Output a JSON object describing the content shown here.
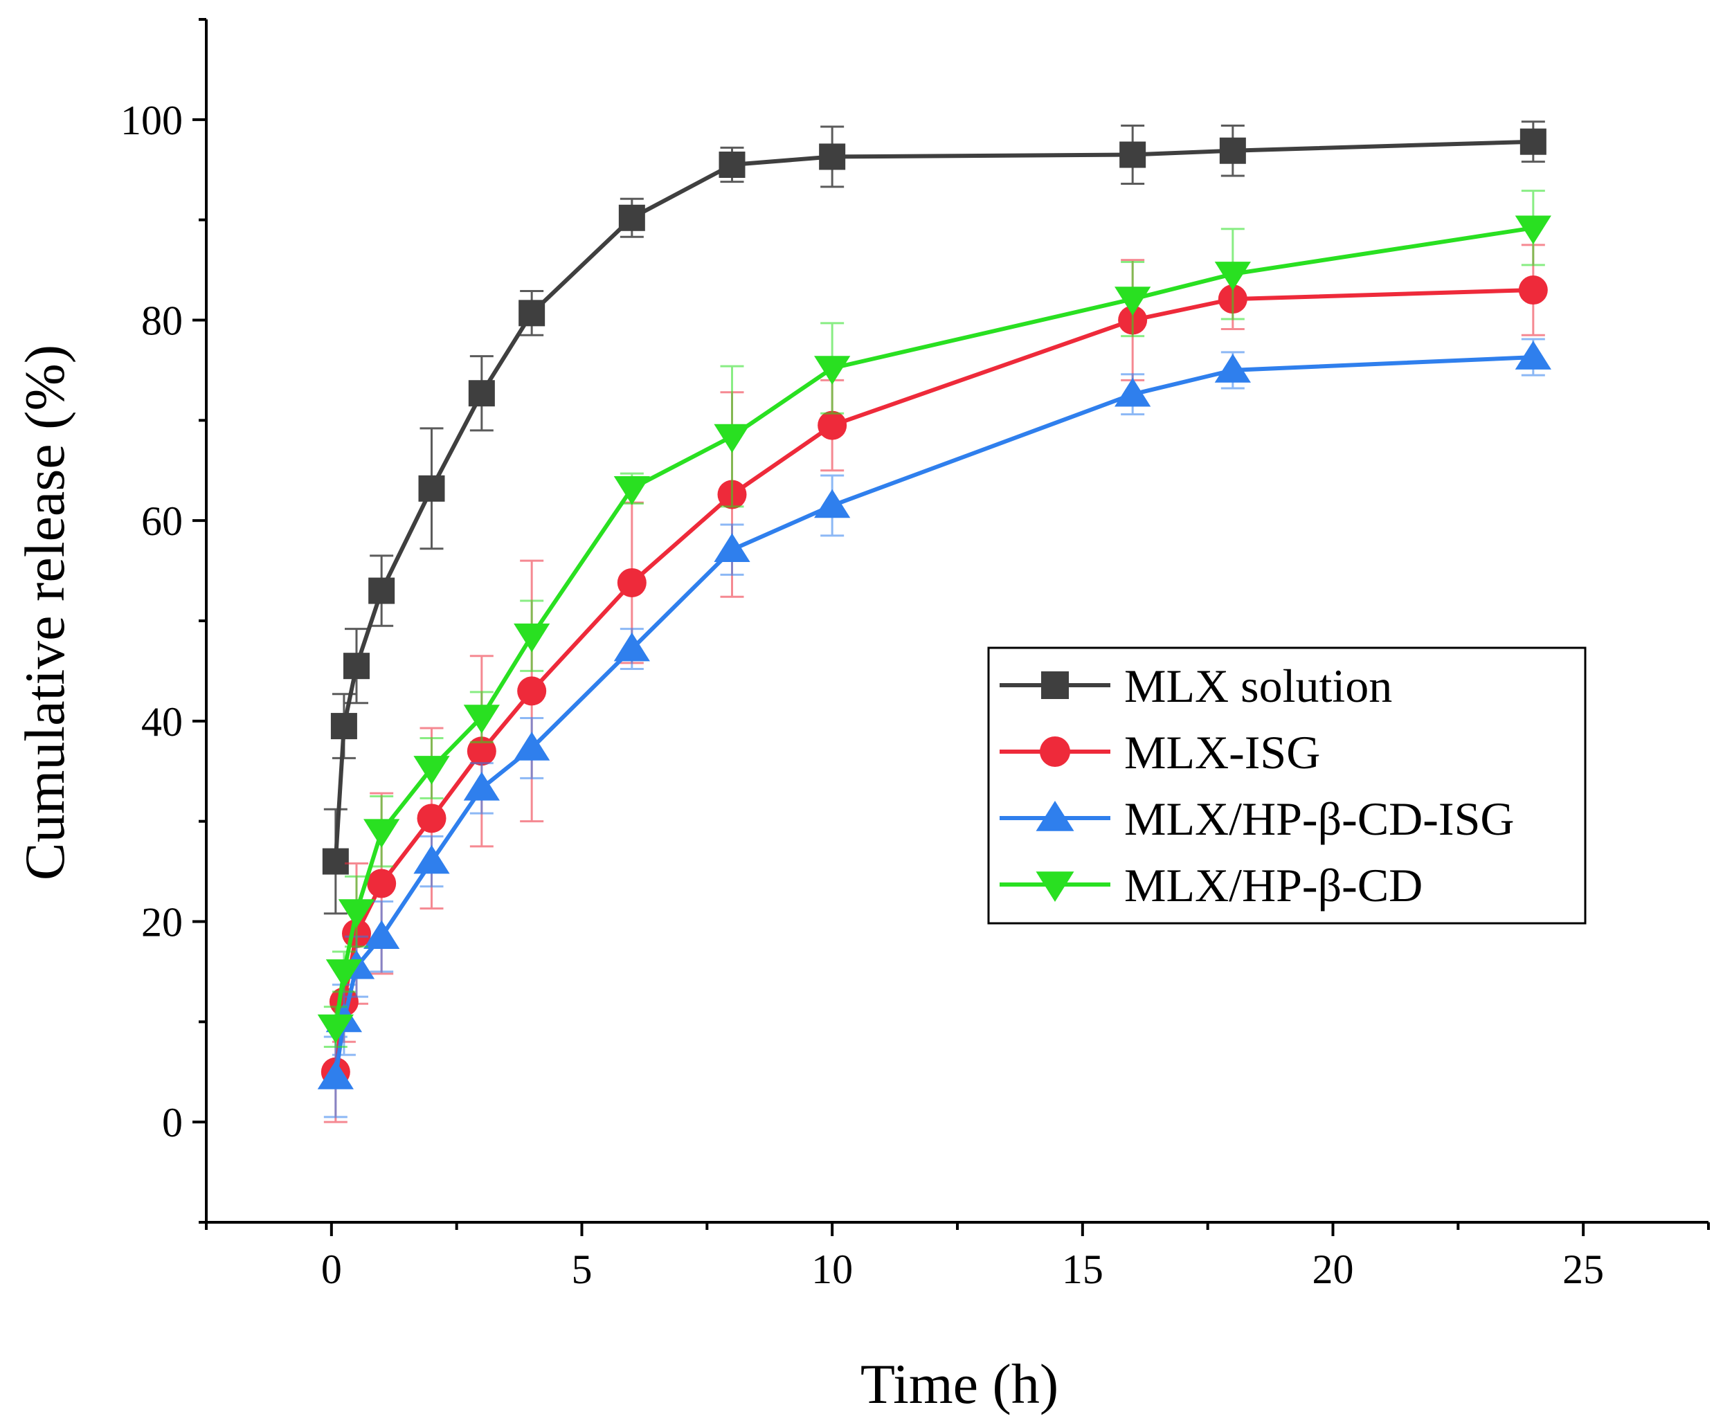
{
  "chart_data": {
    "type": "line",
    "xlabel": "Time (h)",
    "ylabel": "Cumulative release (%)",
    "xlim": [
      -2.5,
      27.5
    ],
    "ylim": [
      -10,
      110
    ],
    "x_ticks": [
      "0",
      "5",
      "10",
      "15",
      "20",
      "25"
    ],
    "y_ticks": [
      "0",
      "20",
      "40",
      "60",
      "80",
      "100"
    ],
    "legend_position": "center-right",
    "series": [
      {
        "name": "MLX solution",
        "color": "#3f3f3f",
        "marker": "square",
        "x": [
          0.083,
          0.25,
          0.5,
          1,
          2,
          3,
          4,
          6,
          8,
          10,
          16,
          18,
          24
        ],
        "y": [
          26,
          39.5,
          45.5,
          53,
          63.2,
          72.7,
          80.7,
          90.2,
          95.5,
          96.3,
          96.5,
          96.9,
          97.8
        ],
        "err": [
          5.2,
          3.2,
          3.7,
          3.5,
          6,
          3.7,
          2.2,
          1.9,
          1.7,
          3,
          2.9,
          2.5,
          2
        ]
      },
      {
        "name": "MLX-ISG",
        "color": "#ee2a3a",
        "marker": "circle",
        "x": [
          0.083,
          0.25,
          0.5,
          1,
          2,
          3,
          4,
          6,
          8,
          10,
          16,
          18,
          24
        ],
        "y": [
          5,
          12,
          18.8,
          23.8,
          30.3,
          37,
          43,
          53.8,
          62.6,
          69.5,
          80,
          82.1,
          83
        ],
        "err": [
          5,
          4,
          7,
          9,
          9,
          9.5,
          13,
          8,
          10.2,
          4.5,
          6,
          3,
          4.5
        ]
      },
      {
        "name": "MLX/HP-β-CD-ISG",
        "color": "#2f7fed",
        "marker": "triangle-up",
        "x": [
          0.083,
          0.25,
          0.5,
          1,
          2,
          3,
          4,
          6,
          8,
          10,
          16,
          18,
          24
        ],
        "y": [
          4.5,
          10.2,
          15.5,
          18.5,
          26,
          33.3,
          37.3,
          47.2,
          57.1,
          61.5,
          72.6,
          75,
          76.3
        ],
        "err": [
          4,
          3.5,
          3,
          3.5,
          2.5,
          2.5,
          3,
          2,
          2.5,
          3,
          2,
          1.8,
          1.8
        ]
      },
      {
        "name": "MLX/HP-β-CD",
        "color": "#29e021",
        "marker": "triangle-down",
        "x": [
          0.083,
          0.25,
          0.5,
          1,
          2,
          3,
          4,
          6,
          8,
          10,
          16,
          18,
          24
        ],
        "y": [
          9.5,
          15,
          21,
          29,
          35.3,
          40.4,
          48.5,
          63.2,
          68.4,
          75.2,
          82.1,
          84.6,
          89.2
        ],
        "err": [
          2,
          2,
          3.5,
          3.5,
          3,
          2.5,
          3.5,
          1.5,
          7,
          4.5,
          3.7,
          4.5,
          3.7
        ]
      }
    ]
  }
}
